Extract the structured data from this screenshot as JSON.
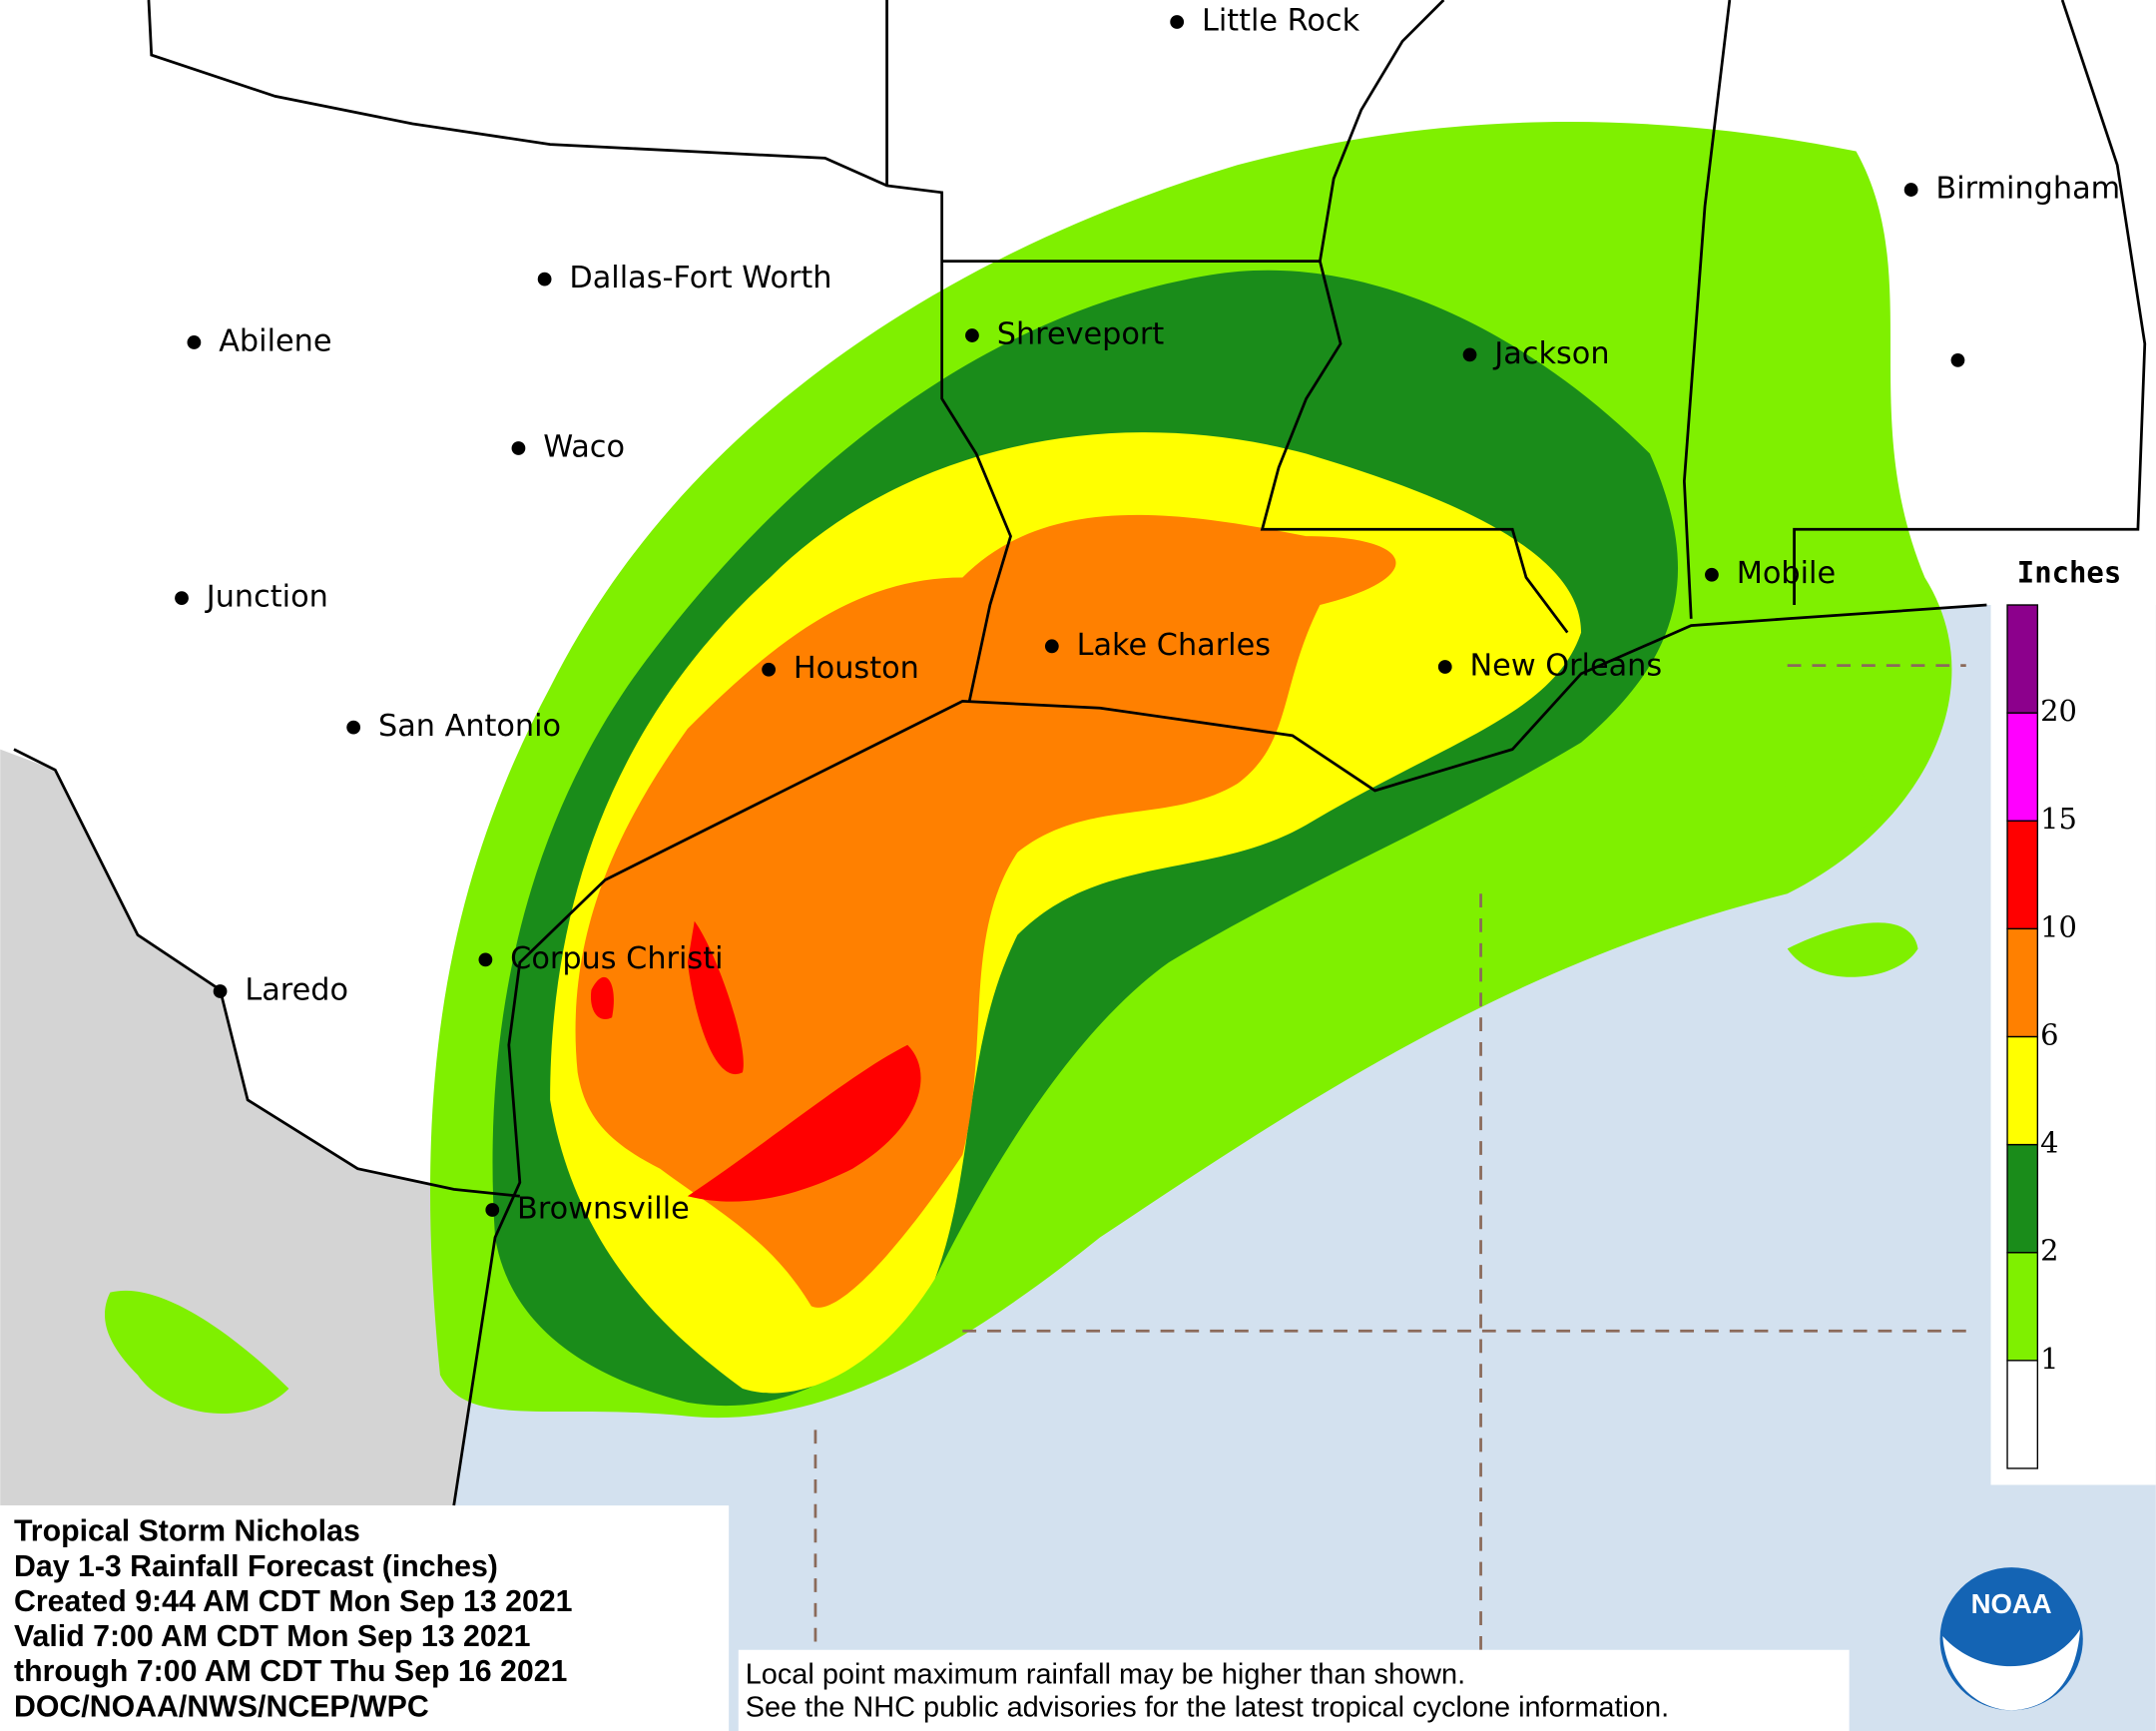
{
  "map": {
    "cities": [
      "Little Rock",
      "Birmingham",
      "Dallas-Fort Worth",
      "Abilene",
      "Shreveport",
      "Jackson",
      "Waco",
      "Junction",
      "Mobile",
      "Houston",
      "Lake Charles",
      "New Orleans",
      "San Antonio",
      "Corpus Christi",
      "Laredo",
      "Brownsville"
    ],
    "legend": {
      "title": "Inches",
      "ticks": [
        1,
        2,
        4,
        6,
        10,
        15,
        20
      ],
      "colors": [
        "#ffffff",
        "#7ff000",
        "#1a8c1a",
        "#ffff00",
        "#ff8000",
        "#ff0000",
        "#ff00ff",
        "#8c008c"
      ]
    },
    "info": [
      "Tropical Storm Nicholas",
      "Day 1-3 Rainfall Forecast (inches)",
      "Created 9:44 AM CDT Mon Sep 13 2021",
      "Valid 7:00 AM CDT Mon Sep 13 2021",
      "through 7:00 AM CDT Thu Sep 16 2021",
      "DOC/NOAA/NWS/NCEP/WPC"
    ],
    "disclaimer": [
      "Local point maximum rainfall may be higher than shown.",
      "See the NHC public advisories for the latest tropical cyclone information."
    ],
    "logo": "NOAA"
  }
}
